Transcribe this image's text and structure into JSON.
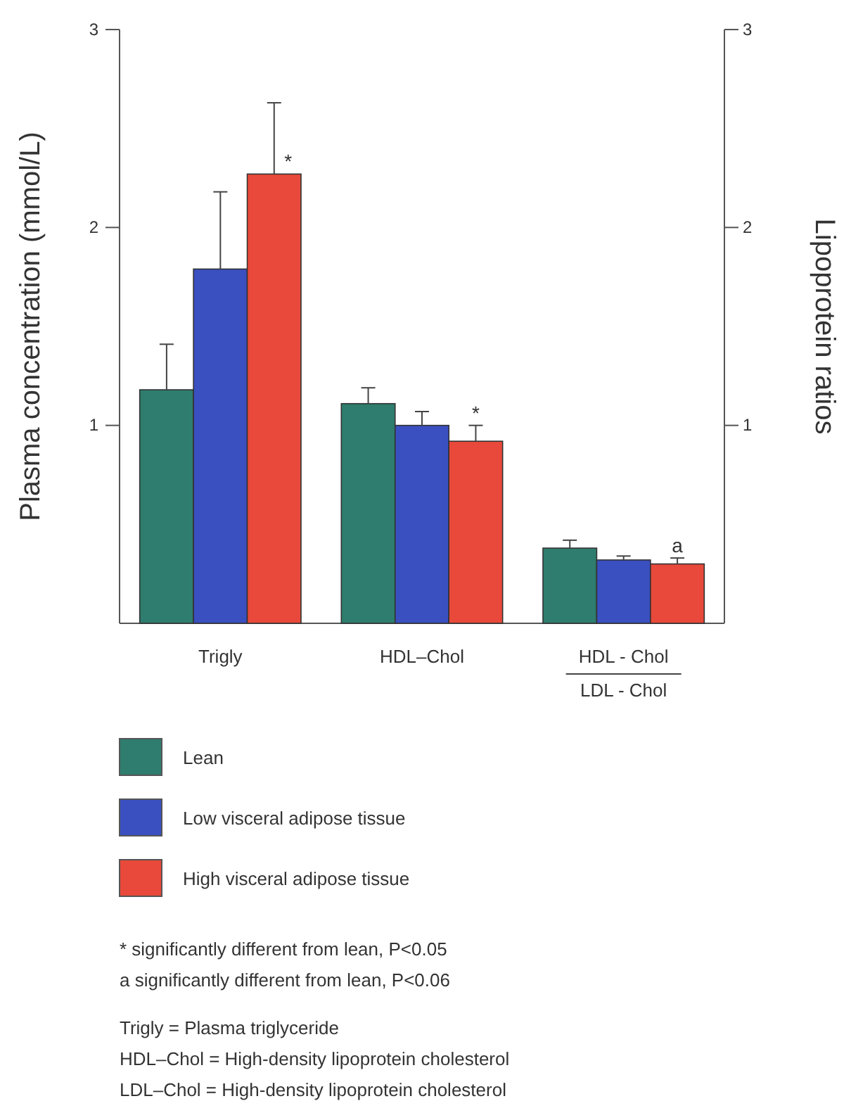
{
  "chart_data": {
    "type": "bar",
    "ylabel": "Plasma concentration (mmol/L)",
    "y2label": "Lipoprotein ratios",
    "categories": [
      "Trigly",
      "HDL–Chol",
      "HDL - Chol\nLDL - Chol"
    ],
    "series": [
      {
        "name": "Lean",
        "color": "#2e7d6e",
        "values": [
          1.18,
          1.11,
          0.38
        ],
        "errors": [
          [
            1.18,
            1.41
          ],
          [
            1.11,
            1.19
          ],
          [
            0.38,
            0.42
          ]
        ]
      },
      {
        "name": "Low visceral adipose tissue",
        "color": "#3a4fc0",
        "values": [
          1.79,
          1.0,
          0.32
        ],
        "errors": [
          [
            1.79,
            2.18
          ],
          [
            1.0,
            1.07
          ],
          [
            0.32,
            0.34
          ]
        ]
      },
      {
        "name": "High visceral adipose tissue",
        "color": "#e8493a",
        "values": [
          2.27,
          0.92,
          0.3
        ],
        "errors": [
          [
            2.27,
            2.63
          ],
          [
            0.92,
            1.0
          ],
          [
            0.3,
            0.33
          ]
        ],
        "value_labels": [
          "*",
          "*",
          "a"
        ]
      }
    ],
    "ylim": [
      0,
      3
    ],
    "yticks": [
      1,
      2,
      3
    ],
    "y2lim": [
      0,
      3
    ],
    "y2ticks": [
      1,
      2,
      3
    ],
    "legend": "bottom",
    "annotations": [
      "* significantly different from lean, P<0.05",
      "a significantly different from lean, P<0.06",
      "Trigly = Plasma triglyceride",
      "HDL–Chol = High-density lipoprotein cholesterol",
      "LDL–Chol = High-density lipoprotein cholesterol"
    ]
  }
}
